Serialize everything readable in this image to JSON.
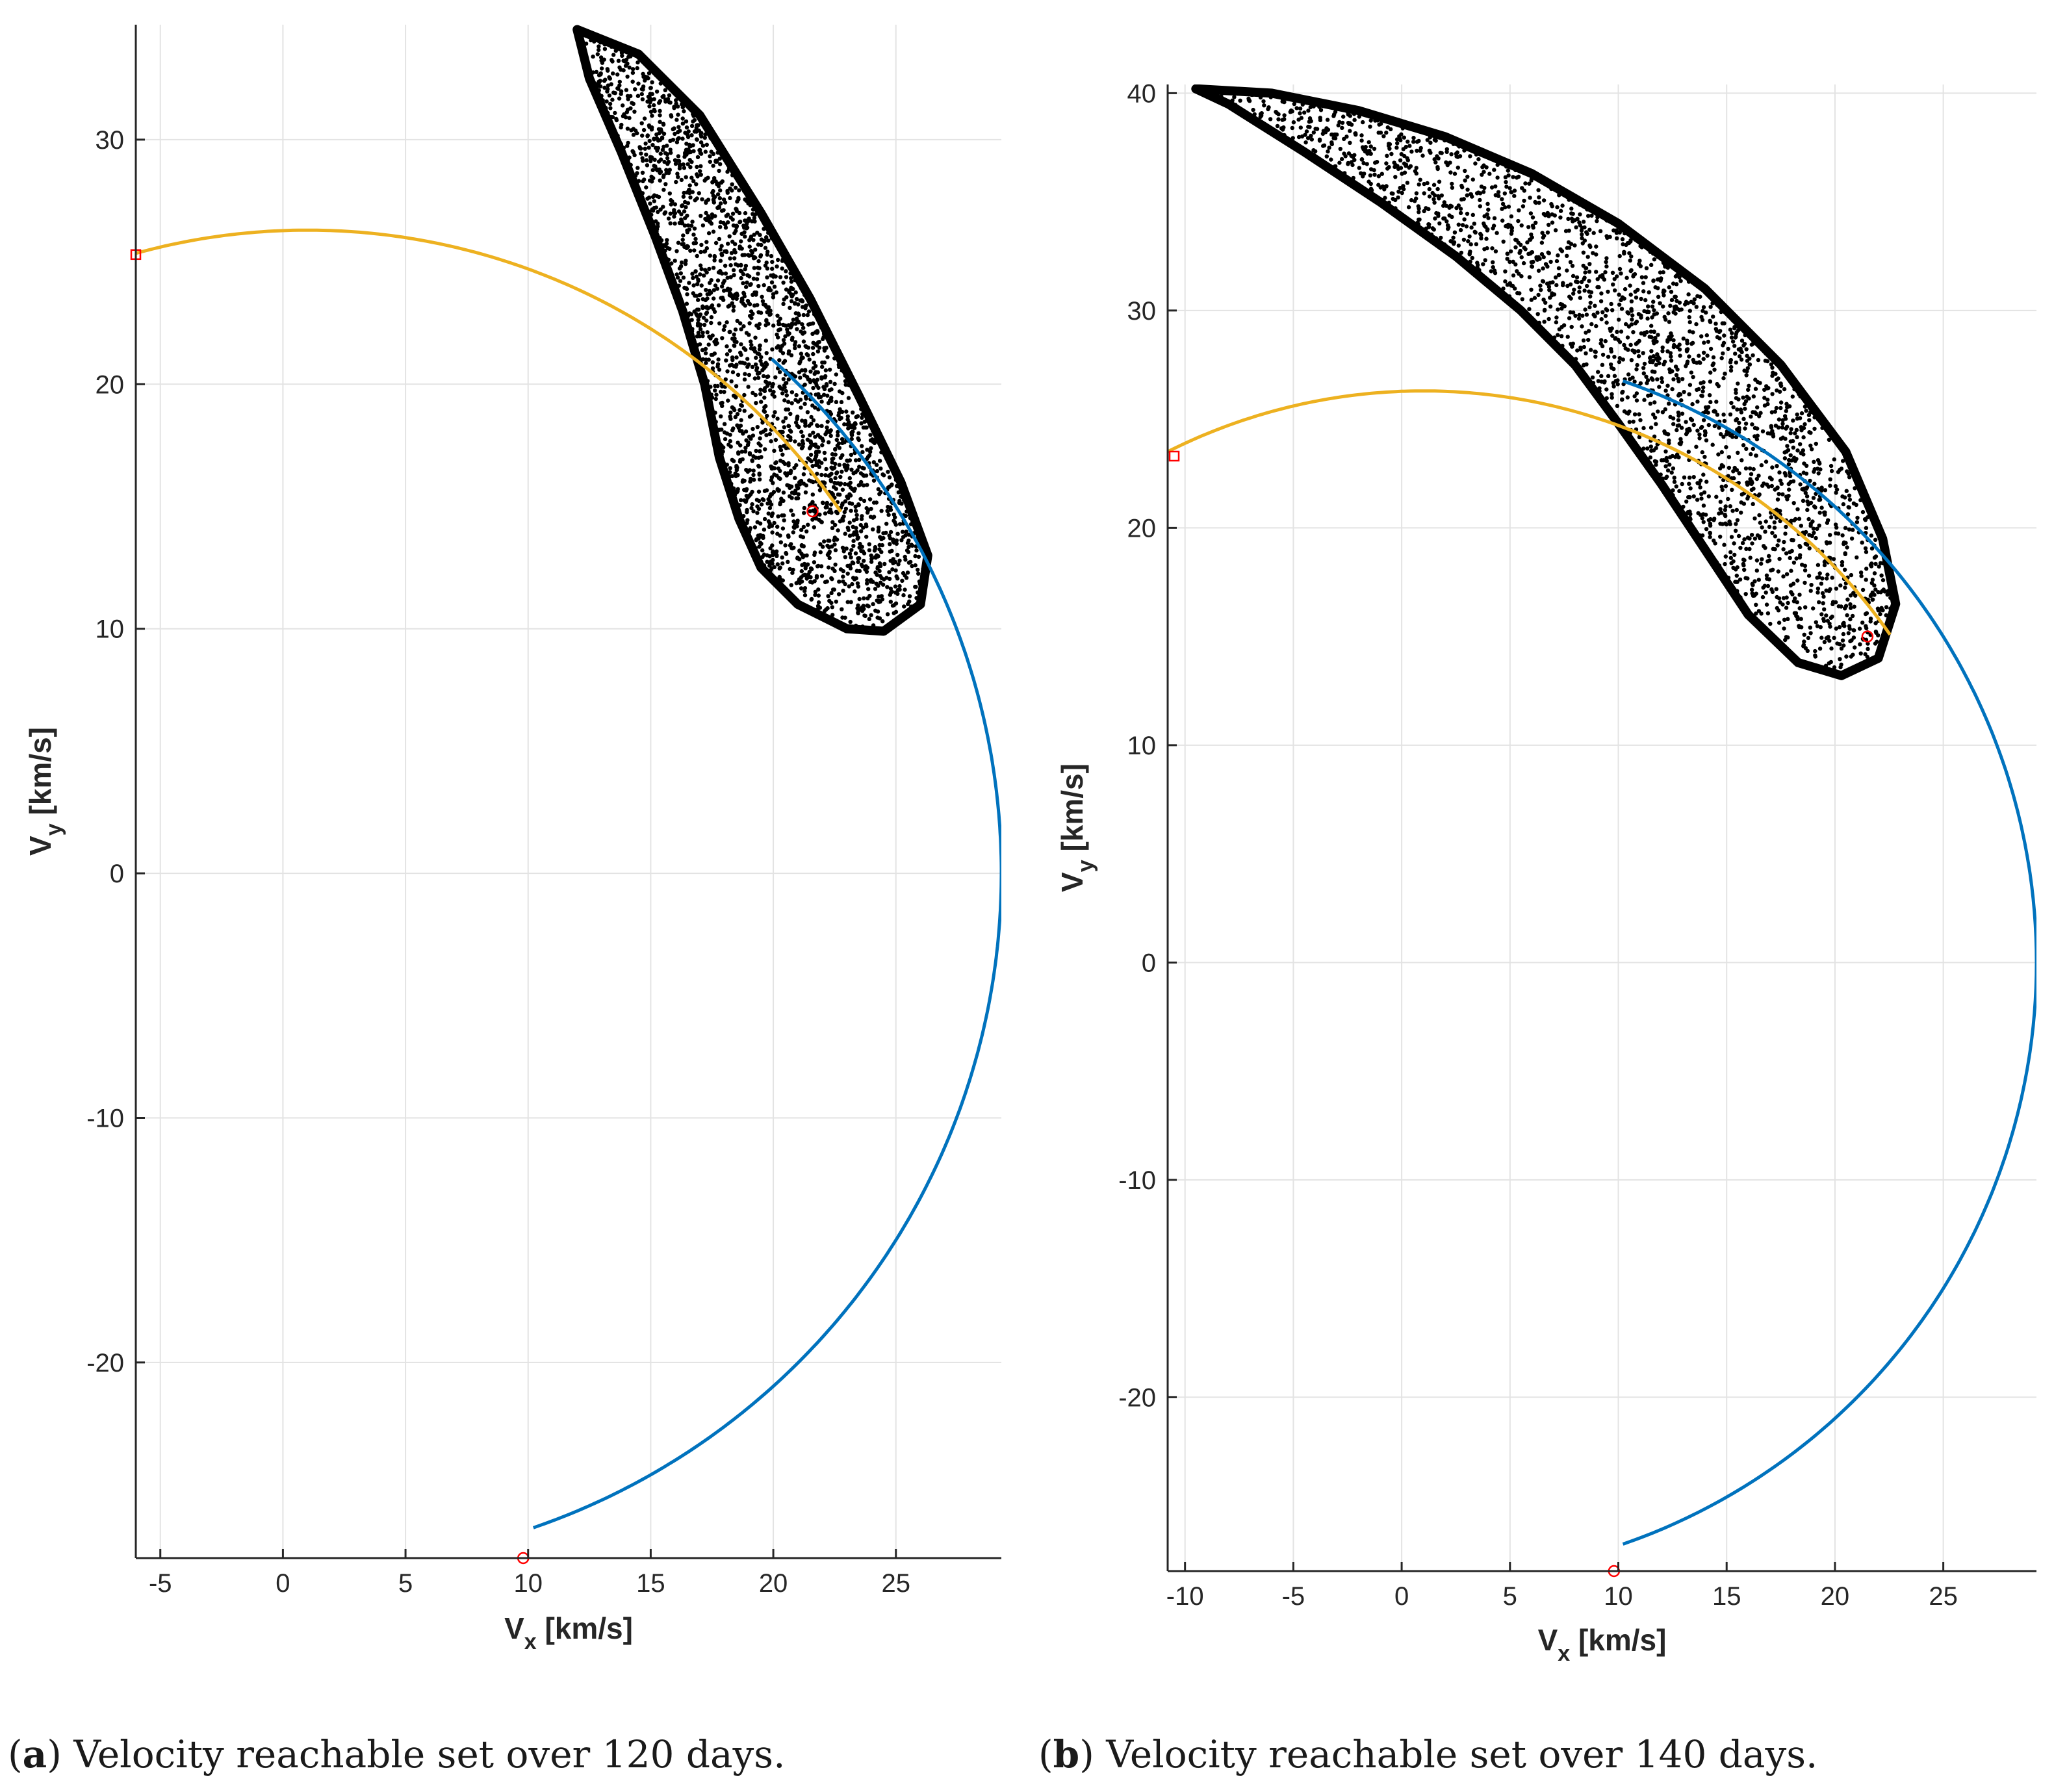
{
  "chart_data": [
    {
      "type": "line",
      "panel_id": "a",
      "caption_letter": "a",
      "caption_text": "Velocity reachable set over 120 days.",
      "xlabel_main": "V",
      "xlabel_sub": "x",
      "xlabel_unit": "[km/s]",
      "ylabel_main": "V",
      "ylabel_sub": "y",
      "ylabel_unit": "[km/s]",
      "xlim": [
        -6,
        29.3
      ],
      "ylim": [
        -28,
        34.7
      ],
      "xticks": [
        -5,
        0,
        5,
        10,
        15,
        20,
        25
      ],
      "yticks": [
        -20,
        -10,
        0,
        10,
        20,
        30
      ],
      "grid": true,
      "series": [
        {
          "name": "reference velocity circle",
          "color": "#0072BD",
          "circle": {
            "cx": 1.0,
            "cy": 0.0,
            "r": 28.3,
            "theta_start_deg": -71,
            "theta_end_deg": 48
          }
        },
        {
          "name": "transfer arc",
          "color": "#EDB120",
          "circle": {
            "cx": 1.0,
            "cy": 0.0,
            "r": 26.3,
            "theta_start_deg": 164.8,
            "theta_end_deg": 34.2
          }
        }
      ],
      "markers": [
        {
          "name": "start marker",
          "x": 9.8,
          "y": -28.0,
          "shape": "circle",
          "color": "#FF0000"
        },
        {
          "name": "end marker",
          "x": 21.6,
          "y": 14.8,
          "shape": "circle",
          "color": "#FF0000"
        },
        {
          "name": "departure marker",
          "x": -6.0,
          "y": 25.3,
          "shape": "square",
          "color": "#FF0000"
        }
      ],
      "reachable_set": {
        "name": "reachable set",
        "color": "#000000",
        "outer_boundary": [
          [
            12.0,
            34.5
          ],
          [
            14.5,
            33.5
          ],
          [
            17.0,
            31.0
          ],
          [
            19.5,
            27.0
          ],
          [
            21.5,
            23.5
          ],
          [
            23.5,
            19.5
          ],
          [
            25.2,
            16.0
          ],
          [
            26.3,
            13.0
          ],
          [
            26.0,
            11.0
          ],
          [
            24.5,
            9.9
          ],
          [
            23.0,
            10.0
          ],
          [
            21.0,
            11.0
          ],
          [
            19.5,
            12.5
          ],
          [
            18.6,
            14.5
          ],
          [
            17.8,
            17.0
          ],
          [
            17.2,
            20.0
          ],
          [
            16.3,
            23.0
          ],
          [
            15.2,
            26.0
          ],
          [
            13.8,
            29.5
          ],
          [
            12.5,
            32.5
          ],
          [
            12.0,
            34.5
          ]
        ],
        "scatter_seed": 17,
        "scatter_count": 2600
      }
    },
    {
      "type": "line",
      "panel_id": "b",
      "caption_letter": "b",
      "caption_text": "Velocity reachable set over 140 days.",
      "xlabel_main": "V",
      "xlabel_sub": "x",
      "xlabel_unit": "[km/s]",
      "ylabel_main": "V",
      "ylabel_sub": "y",
      "ylabel_unit": "[km/s]",
      "xlim": [
        -10.8,
        29.3
      ],
      "ylim": [
        -28,
        40.4
      ],
      "xticks": [
        -10,
        -5,
        0,
        5,
        10,
        15,
        20,
        25
      ],
      "yticks": [
        -20,
        -10,
        0,
        10,
        20,
        30,
        40
      ],
      "grid": true,
      "series": [
        {
          "name": "reference velocity circle",
          "color": "#0072BD",
          "circle": {
            "cx": 1.0,
            "cy": 0.0,
            "r": 28.3,
            "theta_start_deg": -71,
            "theta_end_deg": 71
          }
        },
        {
          "name": "transfer arc",
          "color": "#EDB120",
          "circle": {
            "cx": 1.0,
            "cy": 0.0,
            "r": 26.3,
            "theta_start_deg": 152.5,
            "theta_end_deg": 35.0
          }
        }
      ],
      "markers": [
        {
          "name": "start marker",
          "x": 9.8,
          "y": -28.0,
          "shape": "circle",
          "color": "#FF0000"
        },
        {
          "name": "end marker",
          "x": 21.5,
          "y": 15.0,
          "shape": "circle",
          "color": "#FF0000"
        },
        {
          "name": "departure marker",
          "x": -10.5,
          "y": 23.3,
          "shape": "square",
          "color": "#FF0000"
        }
      ],
      "reachable_set": {
        "name": "reachable set",
        "color": "#000000",
        "outer_boundary": [
          [
            -9.5,
            40.2
          ],
          [
            -6.0,
            40.0
          ],
          [
            -2.0,
            39.2
          ],
          [
            2.0,
            38.0
          ],
          [
            6.0,
            36.3
          ],
          [
            10.0,
            34.0
          ],
          [
            14.0,
            31.0
          ],
          [
            17.5,
            27.5
          ],
          [
            20.5,
            23.5
          ],
          [
            22.2,
            19.5
          ],
          [
            22.8,
            16.5
          ],
          [
            22.0,
            14.0
          ],
          [
            20.3,
            13.2
          ],
          [
            18.3,
            13.8
          ],
          [
            16.0,
            16.0
          ],
          [
            14.0,
            19.0
          ],
          [
            12.0,
            22.0
          ],
          [
            10.0,
            24.8
          ],
          [
            8.0,
            27.5
          ],
          [
            5.5,
            30.0
          ],
          [
            2.5,
            32.5
          ],
          [
            -1.0,
            35.0
          ],
          [
            -4.5,
            37.3
          ],
          [
            -8.0,
            39.5
          ],
          [
            -9.5,
            40.2
          ]
        ],
        "scatter_seed": 29,
        "scatter_count": 2400
      }
    }
  ]
}
